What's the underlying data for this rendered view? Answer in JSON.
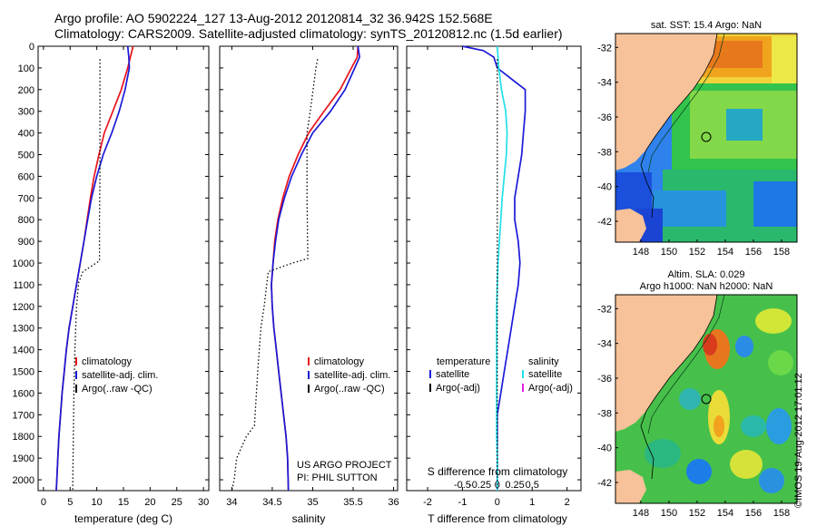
{
  "header": {
    "line1": "Argo profile: AO 5902224_127 13-Aug-2012 20120814_32 36.942S 152.568E",
    "line2": "Climatology: CARS2009. Satellite-adjusted climatology: synTS_20120812.nc (1.5d earlier)"
  },
  "stamp": "©IMOS 19-Aug-2012 17:01:12",
  "colors": {
    "climatology": "#e8141c",
    "satellite": "#1a1ad8",
    "argo": "#000000",
    "salinity_satellite": "#22e0e8",
    "argo_adj_salinity": "#e020e0",
    "land": "#f7c299"
  },
  "chart_data": [
    {
      "type": "line",
      "id": "temperature",
      "xlabel": "temperature (deg C)",
      "xlim": [
        -1,
        31
      ],
      "ylim": [
        0,
        2050
      ],
      "xticks": [
        0,
        5,
        10,
        15,
        20,
        25,
        30
      ],
      "yticks": [
        0,
        100,
        200,
        300,
        400,
        500,
        600,
        700,
        800,
        900,
        1000,
        1100,
        1200,
        1300,
        1400,
        1500,
        1600,
        1700,
        1800,
        1900,
        2000
      ],
      "legend": [
        "climatology",
        "satellite-adj. clim.",
        "Argo(..raw -QC)"
      ],
      "series": [
        {
          "name": "climatology",
          "style": "solid",
          "color": "#e8141c",
          "x": [
            16.8,
            16.3,
            15.8,
            14.6,
            13.0,
            11.4,
            10.4,
            9.5,
            8.8,
            8.2,
            7.6,
            6.9,
            6.2,
            5.5,
            4.8,
            4.3,
            3.9,
            3.5,
            3.2,
            2.9,
            2.7,
            2.5,
            2.4
          ],
          "y": [
            0,
            50,
            100,
            200,
            300,
            400,
            500,
            600,
            700,
            800,
            900,
            1000,
            1100,
            1200,
            1300,
            1400,
            1500,
            1600,
            1700,
            1800,
            1900,
            2000,
            2050
          ]
        },
        {
          "name": "satellite-adj. clim.",
          "style": "solid",
          "color": "#1a1ad8",
          "x": [
            15.8,
            16.0,
            16.1,
            15.3,
            14.2,
            12.8,
            11.2,
            10.0,
            9.0,
            8.3,
            7.6,
            6.9,
            6.2,
            5.5,
            4.8,
            4.3,
            3.9,
            3.5,
            3.2,
            2.9,
            2.7,
            2.5,
            2.4
          ],
          "y": [
            0,
            50,
            100,
            200,
            300,
            400,
            500,
            600,
            700,
            800,
            900,
            1000,
            1100,
            1200,
            1300,
            1400,
            1500,
            1600,
            1700,
            1800,
            1900,
            2000,
            2050
          ]
        },
        {
          "name": "Argo(..raw -QC)",
          "style": "dotted",
          "color": "#000000",
          "x": [
            10.6,
            10.6,
            10.6,
            10.6,
            10.5,
            10.5,
            7.4,
            6.6,
            6.2,
            5.9,
            5.7,
            5.6,
            5.5,
            5.5
          ],
          "y": [
            60,
            200,
            400,
            600,
            800,
            990,
            1040,
            1090,
            1200,
            1400,
            1600,
            1800,
            2000,
            2050
          ]
        }
      ]
    },
    {
      "type": "line",
      "id": "salinity",
      "xlabel": "salinity",
      "xlim": [
        33.85,
        36.05
      ],
      "ylim": [
        0,
        2050
      ],
      "xticks": [
        34,
        34.5,
        35,
        35.5,
        36
      ],
      "xticklabels": [
        "34",
        "34.5",
        "35",
        "35.5",
        "36"
      ],
      "legend": [
        "climatology",
        "satellite-adj. clim.",
        "Argo(..raw -QC)"
      ],
      "annotation": [
        "US ARGO PROJECT",
        "PI: PHIL SUTTON"
      ],
      "series": [
        {
          "name": "climatology",
          "style": "solid",
          "color": "#e8141c",
          "x": [
            35.56,
            35.55,
            35.48,
            35.34,
            35.14,
            34.95,
            34.82,
            34.71,
            34.63,
            34.57,
            34.53,
            34.51,
            34.49,
            34.5,
            34.52,
            34.55,
            34.58,
            34.61,
            34.64,
            34.67,
            34.69,
            34.7
          ],
          "y": [
            0,
            50,
            100,
            200,
            300,
            400,
            500,
            600,
            700,
            800,
            900,
            1000,
            1100,
            1200,
            1300,
            1400,
            1500,
            1600,
            1700,
            1800,
            1900,
            2050
          ]
        },
        {
          "name": "satellite-adj. clim.",
          "style": "solid",
          "color": "#1a1ad8",
          "x": [
            35.56,
            35.58,
            35.52,
            35.4,
            35.22,
            35.0,
            34.86,
            34.74,
            34.65,
            34.58,
            34.54,
            34.51,
            34.49,
            34.5,
            34.52,
            34.55,
            34.58,
            34.61,
            34.64,
            34.67,
            34.69,
            34.7
          ],
          "y": [
            0,
            50,
            100,
            200,
            300,
            400,
            500,
            600,
            700,
            800,
            900,
            1000,
            1100,
            1200,
            1300,
            1400,
            1500,
            1600,
            1700,
            1800,
            1900,
            2050
          ]
        },
        {
          "name": "Argo(..raw -QC)",
          "style": "dotted",
          "color": "#000000",
          "x": [
            35.06,
            35.04,
            34.97,
            34.93,
            34.93,
            34.94,
            34.75,
            34.45,
            34.4,
            34.36,
            34.32,
            34.28,
            34.18,
            34.06,
            34.03,
            34.0
          ],
          "y": [
            60,
            100,
            300,
            400,
            700,
            980,
            1000,
            1040,
            1200,
            1300,
            1500,
            1750,
            1800,
            1900,
            2000,
            2050
          ]
        }
      ]
    },
    {
      "type": "line",
      "id": "difference",
      "xlabel": "T difference from climatology",
      "xlabel_top": "S difference from climatology",
      "xlim": [
        -2.6,
        2.4
      ],
      "ylim": [
        0,
        2050
      ],
      "xticks_T": [
        -2,
        -1,
        0,
        1,
        2
      ],
      "xticklabels_T": [
        "-2",
        "-1",
        "0",
        "1",
        "2"
      ],
      "xticks_S": [
        -0.5,
        -0.25,
        0,
        0.25,
        0.5
      ],
      "xticklabels_S": [
        "-0.5",
        "-0.25",
        "0",
        "0.25",
        "0.5"
      ],
      "legend_temperature": {
        "title": "temperature",
        "items": [
          "satellite",
          "Argo(-adj)"
        ]
      },
      "legend_salinity": {
        "title": "salinity",
        "items": [
          "satellite",
          "Argo(-adj)"
        ]
      },
      "series": [
        {
          "name": "temperature satellite",
          "style": "solid",
          "color": "#1a1ad8",
          "x": [
            -1.0,
            -0.4,
            -0.1,
            0.0,
            0.4,
            0.8,
            0.8,
            0.75,
            0.7,
            0.6,
            0.5,
            0.5,
            0.6,
            0.65,
            0.6,
            0.5,
            0.4,
            0.3,
            0.2,
            0.1,
            0.0,
            0.0,
            0.0
          ],
          "y": [
            0,
            20,
            50,
            100,
            150,
            200,
            300,
            400,
            500,
            600,
            700,
            800,
            900,
            1000,
            1100,
            1200,
            1300,
            1400,
            1500,
            1600,
            1700,
            1900,
            2050
          ]
        },
        {
          "name": "salinity satellite",
          "style": "solid",
          "color": "#22e0e8",
          "x": [
            0.0,
            0.02,
            0.06,
            0.12,
            0.14,
            0.13,
            0.1,
            0.07,
            0.05,
            0.03,
            0.01,
            0.0,
            -0.01,
            -0.01,
            -0.01,
            -0.01,
            0.0,
            0.0
          ],
          "y": [
            0,
            100,
            200,
            300,
            400,
            500,
            600,
            700,
            800,
            900,
            1000,
            1100,
            1200,
            1400,
            1600,
            1800,
            1900,
            2050
          ]
        },
        {
          "name": "zero",
          "style": "dotted",
          "color": "#000000",
          "x": [
            0,
            0
          ],
          "y": [
            60,
            2050
          ]
        }
      ]
    },
    {
      "type": "heatmap",
      "id": "sst-map",
      "title": "sat. SST: 15.4 Argo: NaN",
      "xticks": [
        148,
        150,
        152,
        154,
        156,
        158
      ],
      "yticks": [
        -32,
        -34,
        -36,
        -38,
        -40,
        -42
      ],
      "xlim": [
        146.2,
        159.1
      ],
      "ylim": [
        -43.2,
        -31.2
      ],
      "marker": {
        "lon": 152.568,
        "lat": -36.942
      }
    },
    {
      "type": "heatmap",
      "id": "sla-map",
      "title": [
        "Altim. SLA: 0.029",
        "Argo h1000: NaN h2000: NaN"
      ],
      "xticks": [
        148,
        150,
        152,
        154,
        156,
        158
      ],
      "yticks": [
        -32,
        -34,
        -36,
        -38,
        -40,
        -42
      ],
      "xlim": [
        146.2,
        159.1
      ],
      "ylim": [
        -43.2,
        -31.2
      ],
      "marker": {
        "lon": 152.568,
        "lat": -36.942
      }
    }
  ]
}
